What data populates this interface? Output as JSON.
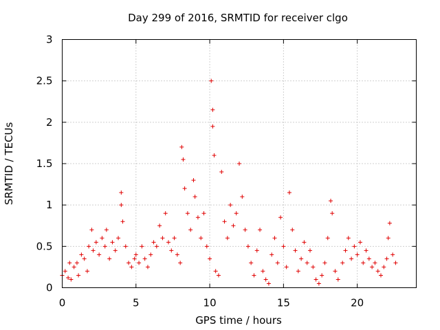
{
  "chart_data": {
    "type": "scatter",
    "title": "Day 299 of 2016, SRMTID for receiver clgo",
    "xlabel": "GPS time / hours",
    "ylabel": "SRMTID / TECUs",
    "xlim": [
      0,
      24
    ],
    "ylim": [
      0,
      3
    ],
    "xticks": [
      0,
      5,
      10,
      15,
      20
    ],
    "xtick_labels": [
      "0",
      "5",
      "10",
      "15",
      "20"
    ],
    "yticks": [
      0,
      0.5,
      1,
      1.5,
      2,
      2.5,
      3
    ],
    "ytick_labels": [
      "0",
      "0.5",
      "1",
      "1.5",
      "2",
      "2.5",
      "3"
    ],
    "grid": true,
    "marker": "+",
    "series_color": "#e00000",
    "x_range": [
      0,
      22.7
    ],
    "series": [
      {
        "name": "SRMTID",
        "points": [
          [
            0.0,
            0.15
          ],
          [
            0.2,
            0.2
          ],
          [
            0.4,
            0.12
          ],
          [
            0.5,
            0.3
          ],
          [
            0.6,
            0.1
          ],
          [
            0.8,
            0.25
          ],
          [
            1.0,
            0.3
          ],
          [
            1.1,
            0.15
          ],
          [
            1.3,
            0.4
          ],
          [
            1.5,
            0.35
          ],
          [
            1.7,
            0.2
          ],
          [
            1.8,
            0.5
          ],
          [
            2.0,
            0.7
          ],
          [
            2.1,
            0.45
          ],
          [
            2.3,
            0.55
          ],
          [
            2.5,
            0.4
          ],
          [
            2.7,
            0.6
          ],
          [
            2.9,
            0.5
          ],
          [
            3.0,
            0.7
          ],
          [
            3.2,
            0.35
          ],
          [
            3.4,
            0.55
          ],
          [
            3.6,
            0.45
          ],
          [
            3.8,
            0.6
          ],
          [
            4.0,
            1.15
          ],
          [
            4.0,
            1.0
          ],
          [
            4.1,
            0.8
          ],
          [
            4.3,
            0.5
          ],
          [
            4.5,
            0.3
          ],
          [
            4.7,
            0.25
          ],
          [
            4.9,
            0.35
          ],
          [
            5.0,
            0.4
          ],
          [
            5.2,
            0.3
          ],
          [
            5.4,
            0.5
          ],
          [
            5.6,
            0.35
          ],
          [
            5.8,
            0.25
          ],
          [
            6.0,
            0.4
          ],
          [
            6.2,
            0.55
          ],
          [
            6.4,
            0.5
          ],
          [
            6.6,
            0.75
          ],
          [
            6.8,
            0.6
          ],
          [
            7.0,
            0.9
          ],
          [
            7.2,
            0.55
          ],
          [
            7.4,
            0.45
          ],
          [
            7.6,
            0.6
          ],
          [
            7.8,
            0.4
          ],
          [
            8.0,
            0.3
          ],
          [
            8.1,
            1.7
          ],
          [
            8.2,
            1.55
          ],
          [
            8.3,
            1.2
          ],
          [
            8.5,
            0.9
          ],
          [
            8.7,
            0.7
          ],
          [
            8.9,
            1.3
          ],
          [
            9.0,
            1.1
          ],
          [
            9.2,
            0.85
          ],
          [
            9.4,
            0.6
          ],
          [
            9.6,
            0.9
          ],
          [
            9.8,
            0.5
          ],
          [
            10.0,
            0.35
          ],
          [
            10.1,
            2.5
          ],
          [
            10.2,
            2.15
          ],
          [
            10.2,
            1.95
          ],
          [
            10.3,
            1.6
          ],
          [
            10.4,
            0.2
          ],
          [
            10.6,
            0.15
          ],
          [
            10.8,
            1.4
          ],
          [
            11.0,
            0.8
          ],
          [
            11.2,
            0.6
          ],
          [
            11.4,
            1.0
          ],
          [
            11.6,
            0.75
          ],
          [
            11.8,
            0.9
          ],
          [
            12.0,
            1.5
          ],
          [
            12.2,
            1.1
          ],
          [
            12.4,
            0.7
          ],
          [
            12.6,
            0.5
          ],
          [
            12.8,
            0.3
          ],
          [
            13.0,
            0.15
          ],
          [
            13.2,
            0.45
          ],
          [
            13.4,
            0.7
          ],
          [
            13.6,
            0.2
          ],
          [
            13.8,
            0.1
          ],
          [
            14.0,
            0.05
          ],
          [
            14.2,
            0.4
          ],
          [
            14.4,
            0.6
          ],
          [
            14.6,
            0.3
          ],
          [
            14.8,
            0.85
          ],
          [
            15.0,
            0.5
          ],
          [
            15.2,
            0.25
          ],
          [
            15.4,
            1.15
          ],
          [
            15.6,
            0.7
          ],
          [
            15.8,
            0.45
          ],
          [
            16.0,
            0.2
          ],
          [
            16.2,
            0.35
          ],
          [
            16.4,
            0.55
          ],
          [
            16.6,
            0.3
          ],
          [
            16.8,
            0.45
          ],
          [
            17.0,
            0.25
          ],
          [
            17.2,
            0.1
          ],
          [
            17.4,
            0.05
          ],
          [
            17.6,
            0.15
          ],
          [
            17.8,
            0.3
          ],
          [
            18.0,
            0.6
          ],
          [
            18.2,
            1.05
          ],
          [
            18.3,
            0.9
          ],
          [
            18.5,
            0.2
          ],
          [
            18.7,
            0.1
          ],
          [
            19.0,
            0.3
          ],
          [
            19.2,
            0.45
          ],
          [
            19.4,
            0.6
          ],
          [
            19.6,
            0.35
          ],
          [
            19.8,
            0.5
          ],
          [
            20.0,
            0.4
          ],
          [
            20.2,
            0.55
          ],
          [
            20.4,
            0.3
          ],
          [
            20.6,
            0.45
          ],
          [
            20.8,
            0.35
          ],
          [
            21.0,
            0.25
          ],
          [
            21.2,
            0.3
          ],
          [
            21.4,
            0.2
          ],
          [
            21.6,
            0.15
          ],
          [
            21.8,
            0.25
          ],
          [
            22.0,
            0.35
          ],
          [
            22.1,
            0.6
          ],
          [
            22.2,
            0.78
          ],
          [
            22.4,
            0.4
          ],
          [
            22.6,
            0.3
          ]
        ]
      }
    ]
  }
}
